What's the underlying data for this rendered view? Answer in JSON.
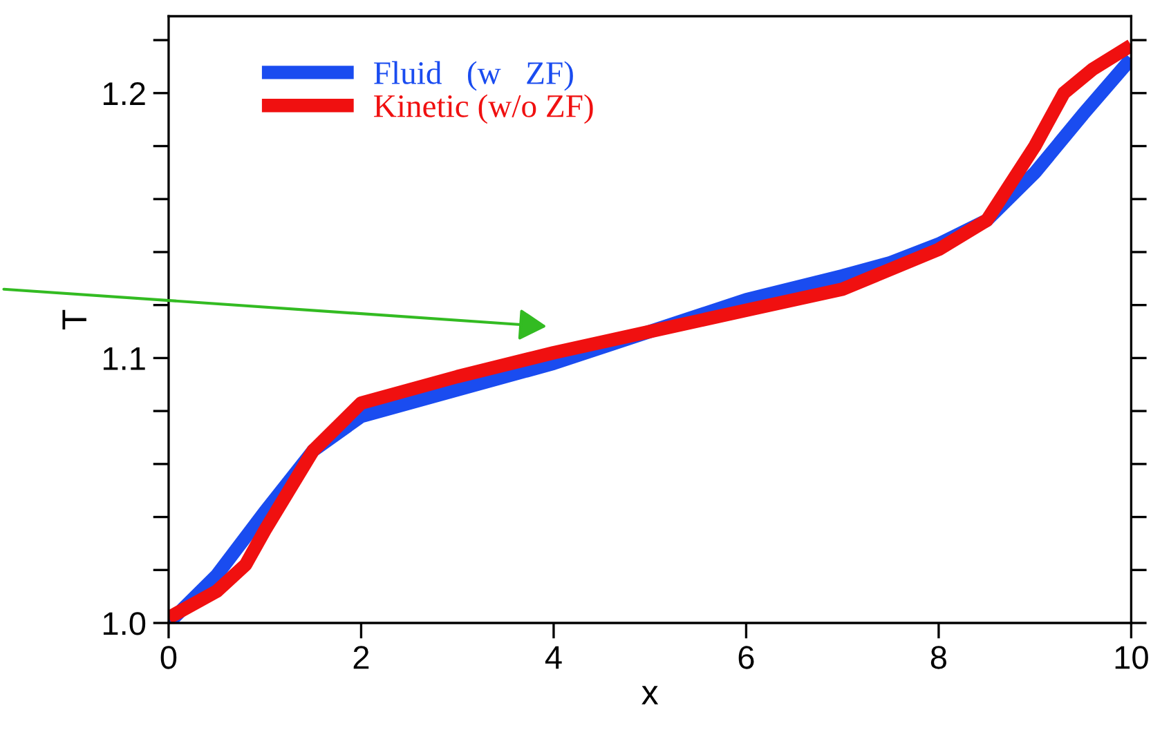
{
  "chart_data": {
    "type": "line",
    "xlabel": "x",
    "ylabel": "T",
    "xlim": [
      0,
      10
    ],
    "xticks": [
      0,
      2,
      4,
      6,
      8,
      10
    ],
    "ylim": [
      1.0,
      1.229
    ],
    "yticks": [
      {
        "value": 1.0,
        "label": "1.0"
      },
      {
        "value": 1.02,
        "label": null
      },
      {
        "value": 1.04,
        "label": null
      },
      {
        "value": 1.06,
        "label": null
      },
      {
        "value": 1.08,
        "label": null
      },
      1.1,
      {
        "value": 1.12,
        "label": null
      },
      {
        "value": 1.14,
        "label": null
      },
      {
        "value": 1.16,
        "label": null
      },
      {
        "value": 1.18,
        "label": null
      },
      1.2,
      {
        "value": 1.22,
        "label": null
      }
    ],
    "grid": false,
    "legend": "top left",
    "marker": "none",
    "line_style": "solid",
    "series": [
      {
        "name": "Fluid   (w   ZF)",
        "color": "#1a4cf0",
        "x": [
          0,
          0.5,
          1,
          1.5,
          2,
          3,
          4,
          5,
          6,
          7,
          7.5,
          8,
          8.5,
          9,
          9.5,
          10
        ],
        "values": [
          1.0,
          1.018,
          1.042,
          1.065,
          1.078,
          1.088,
          1.098,
          1.11,
          1.122,
          1.131,
          1.136,
          1.143,
          1.152,
          1.17,
          1.192,
          1.213
        ]
      },
      {
        "name": "Kinetic (w/o ZF)",
        "color": "#f01010",
        "x": [
          0,
          0.5,
          0.8,
          1,
          1.5,
          2,
          3,
          4,
          5,
          6,
          7,
          8,
          8.5,
          9,
          9.3,
          9.6,
          10
        ],
        "values": [
          1.002,
          1.012,
          1.022,
          1.035,
          1.065,
          1.083,
          1.093,
          1.102,
          1.11,
          1.118,
          1.126,
          1.141,
          1.152,
          1.18,
          1.2,
          1.209,
          1.218
        ]
      }
    ]
  }
}
